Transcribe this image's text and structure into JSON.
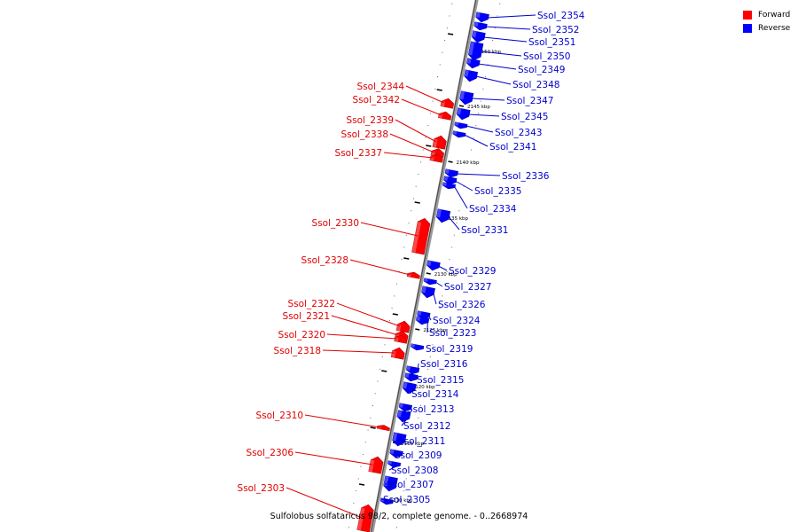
{
  "legend": {
    "items": [
      {
        "label": "Forward",
        "color": "#ff0000"
      },
      {
        "label": "Reverse",
        "color": "#0000ff"
      }
    ]
  },
  "caption": "Sulfolobus solfataricus 98/2, complete genome. - 0..2668974",
  "ruler": [
    "2150 kbp",
    "2145 kbp",
    "2140 kbp",
    "2135 kbp",
    "2130 kbp",
    "2125 kbp",
    "2120 kbp",
    "2115 kbp",
    "2110 kbp"
  ],
  "forward_genes": [
    "Ssol_2344",
    "Ssol_2342",
    "Ssol_2339",
    "Ssol_2338",
    "Ssol_2337",
    "Ssol_2330",
    "Ssol_2328",
    "Ssol_2322",
    "Ssol_2321",
    "Ssol_2320",
    "Ssol_2318",
    "Ssol_2310",
    "Ssol_2306",
    "Ssol_2303"
  ],
  "reverse_genes": [
    "Ssol_2354",
    "Ssol_2352",
    "Ssol_2351",
    "Ssol_2350",
    "Ssol_2349",
    "Ssol_2348",
    "Ssol_2347",
    "Ssol_2345",
    "Ssol_2343",
    "Ssol_2341",
    "Ssol_2336",
    "Ssol_2335",
    "Ssol_2334",
    "Ssol_2331",
    "Ssol_2329",
    "Ssol_2327",
    "Ssol_2326",
    "Ssol_2324",
    "Ssol_2323",
    "Ssol_2319",
    "Ssol_2316",
    "Ssol_2315",
    "Ssol_2314",
    "Ssol_2313",
    "Ssol_2312",
    "Ssol_2311",
    "Ssol_2309",
    "Ssol_2308",
    "Ssol_2307",
    "Ssol_2305"
  ]
}
